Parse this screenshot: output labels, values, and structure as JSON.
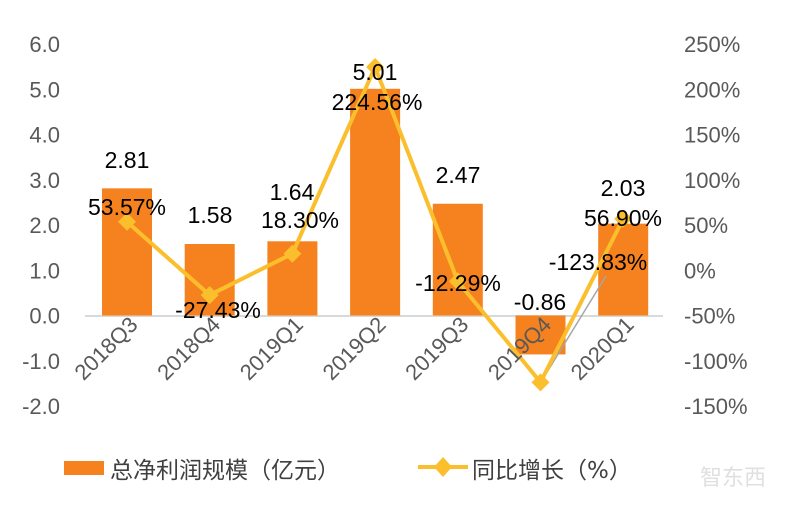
{
  "chart_data": {
    "type": "bar+line",
    "categories": [
      "2018Q3",
      "2018Q4",
      "2019Q1",
      "2019Q2",
      "2019Q3",
      "2019Q4",
      "2020Q1"
    ],
    "series": [
      {
        "name": "总净利润规模（亿元）",
        "type": "bar",
        "axis": "left",
        "color": "#F5821F",
        "values": [
          2.81,
          1.58,
          1.64,
          5.01,
          2.47,
          -0.86,
          2.03
        ],
        "labels": [
          "2.81",
          "1.58",
          "1.64",
          "5.01",
          "2.47",
          "-0.86",
          "2.03"
        ]
      },
      {
        "name": "同比增长（%）",
        "type": "line",
        "axis": "right",
        "color": "#FBBF2D",
        "marker": "diamond",
        "values": [
          53.57,
          -27.43,
          18.3,
          224.56,
          -12.29,
          -123.83,
          56.9
        ],
        "labels": [
          "53.57%",
          "-27.43%",
          "18.30%",
          "224.56%",
          "-12.29%",
          "-123.83%",
          "56.90%"
        ]
      }
    ],
    "left_axis": {
      "ylim": [
        -2.0,
        6.0
      ],
      "ticks": [
        "6.0",
        "5.0",
        "4.0",
        "3.0",
        "2.0",
        "1.0",
        "0.0",
        "-1.0",
        "-2.0"
      ]
    },
    "right_axis": {
      "ylim": [
        -150,
        250
      ],
      "ticks": [
        "250%",
        "200%",
        "150%",
        "100%",
        "50%",
        "0%",
        "-50%",
        "-100%",
        "-150%"
      ]
    },
    "grid": false,
    "legend": "bottom",
    "legend_entries": [
      "总净利润规模（亿元）",
      "同比增长（%）"
    ],
    "watermark": "智东西"
  }
}
